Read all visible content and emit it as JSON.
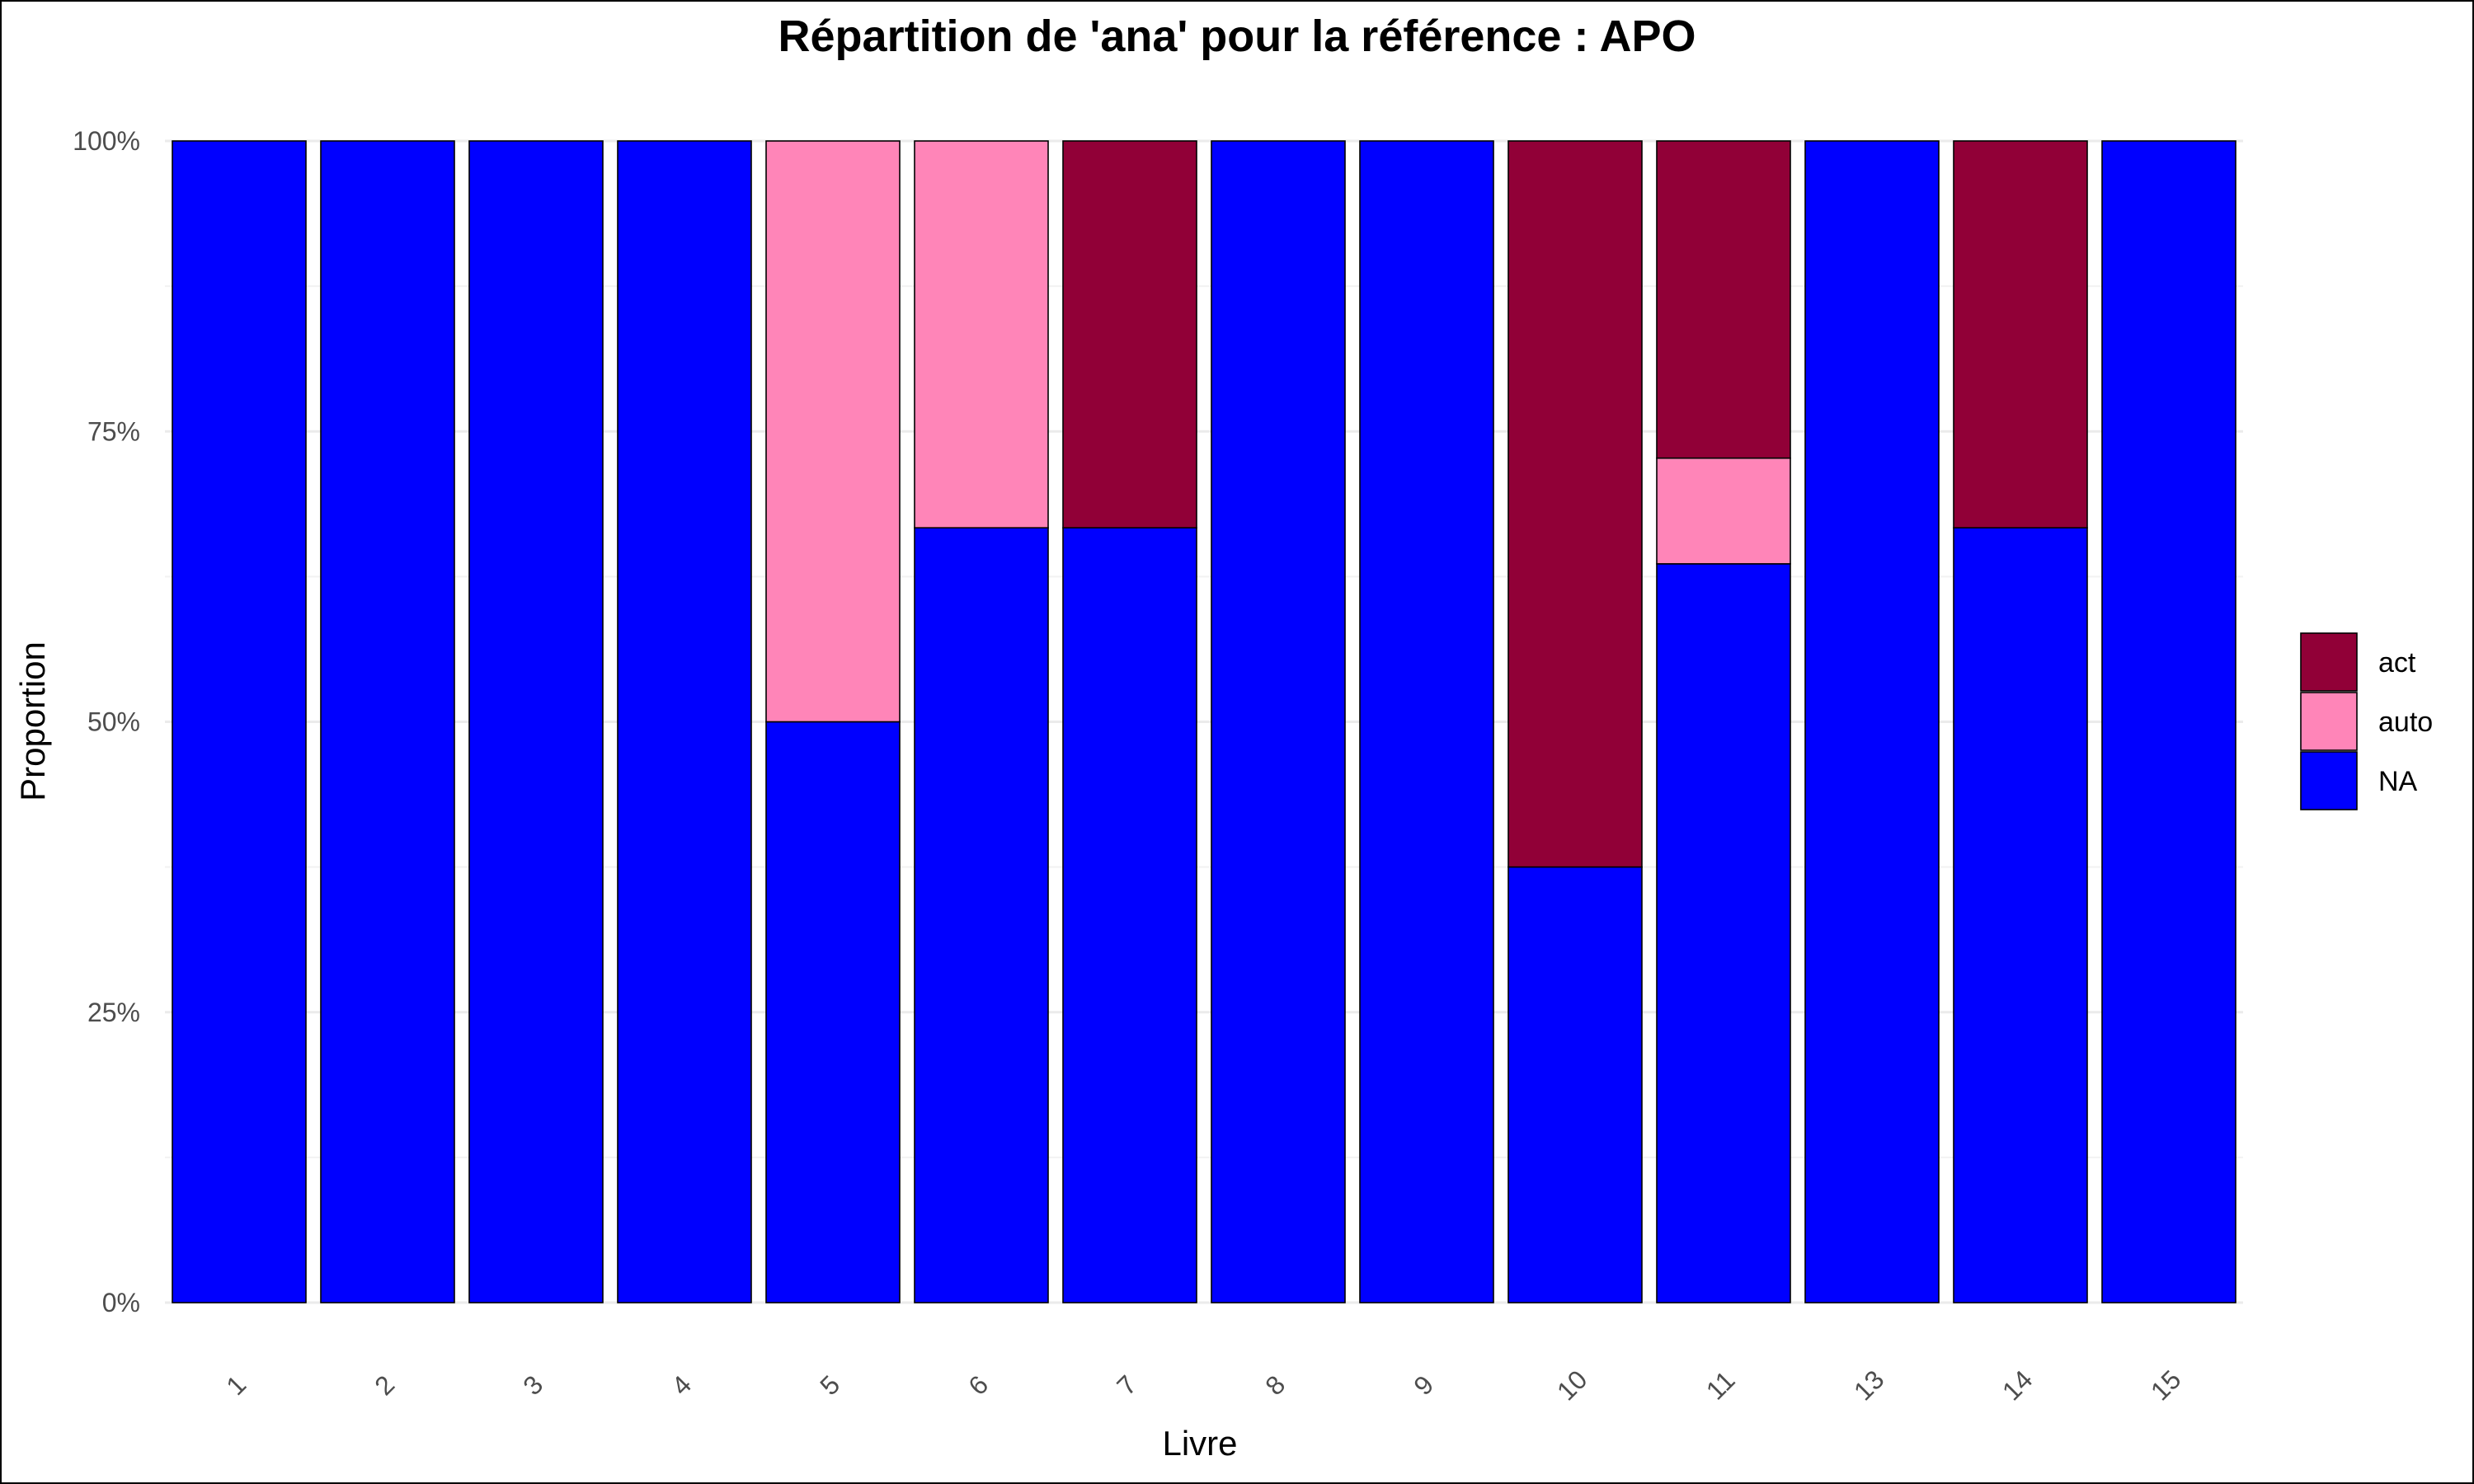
{
  "chart_data": {
    "type": "bar",
    "stacked": true,
    "title": "Répartition de 'ana' pour la référence : APO",
    "xlabel": "Livre",
    "ylabel": "Proportion",
    "ylim": [
      0,
      1
    ],
    "yticks": [
      0,
      0.25,
      0.5,
      0.75,
      1
    ],
    "ytick_labels": [
      "0%",
      "25%",
      "50%",
      "75%",
      "100%"
    ],
    "categories": [
      "1",
      "2",
      "3",
      "4",
      "5",
      "6",
      "7",
      "8",
      "9",
      "10",
      "11",
      "13",
      "14",
      "15"
    ],
    "series": [
      {
        "name": "NA",
        "color": "#0000FF",
        "values": [
          1,
          1,
          1,
          1,
          0.5,
          0.667,
          0.667,
          1,
          1,
          0.375,
          0.636,
          1,
          0.667,
          1
        ]
      },
      {
        "name": "auto",
        "color": "#FF85B8",
        "values": [
          0,
          0,
          0,
          0,
          0.5,
          0.333,
          0,
          0,
          0,
          0,
          0.091,
          0,
          0,
          0
        ]
      },
      {
        "name": "act",
        "color": "#910037",
        "values": [
          0,
          0,
          0,
          0,
          0,
          0,
          0.333,
          0,
          0,
          0.625,
          0.273,
          0,
          0.333,
          0
        ]
      }
    ],
    "legend": {
      "position": "right",
      "order": [
        "act",
        "auto",
        "NA"
      ]
    },
    "grid": true,
    "x_tick_rotation": -45
  }
}
